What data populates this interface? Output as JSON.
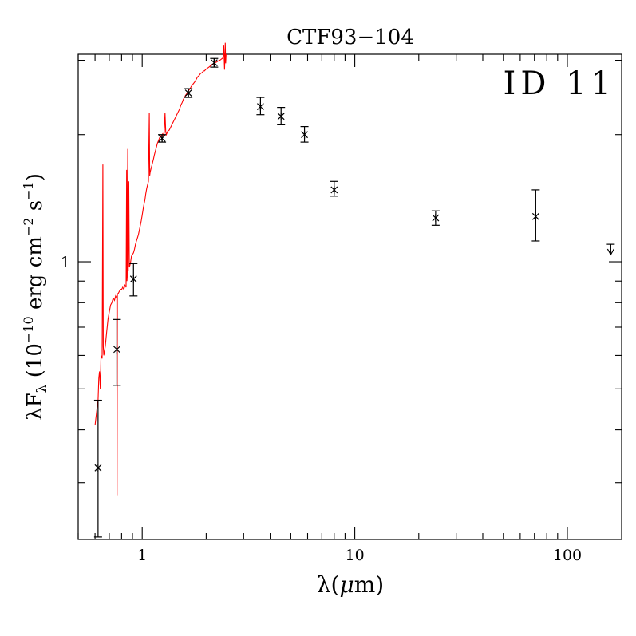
{
  "chart_data": {
    "type": "scatter",
    "title": "CTF93−104",
    "annotation": "ID 11",
    "xlabel_prefix": "λ(",
    "xlabel_mu": "μ",
    "xlabel_suffix": "m)",
    "ylabel": {
      "lambda": "λ",
      "F": "F",
      "sub": "λ",
      "open": " (10",
      "exp1": "−10",
      "mid": " erg cm",
      "exp2": "−2",
      "s": " s",
      "exp3": "−1",
      "close": ")"
    },
    "xscale": "log",
    "yscale": "log",
    "xlim": [
      0.5,
      180
    ],
    "ylim": [
      0.22,
      3.1
    ],
    "x_tick_labels": [
      {
        "value": 1,
        "label": "1"
      },
      {
        "value": 10,
        "label": "10"
      },
      {
        "value": 100,
        "label": "100"
      }
    ],
    "y_tick_labels": [
      {
        "value": 1,
        "label": "1"
      }
    ],
    "photometry": [
      {
        "x": 0.62,
        "y": 0.325,
        "lo": 0.223,
        "hi": 0.47
      },
      {
        "x": 0.76,
        "y": 0.62,
        "lo": 0.51,
        "hi": 0.73
      },
      {
        "x": 0.91,
        "y": 0.91,
        "lo": 0.83,
        "hi": 0.99
      },
      {
        "x": 1.24,
        "y": 1.96,
        "lo": 1.92,
        "hi": 2.0
      },
      {
        "x": 1.65,
        "y": 2.51,
        "lo": 2.45,
        "hi": 2.57
      },
      {
        "x": 2.18,
        "y": 2.96,
        "lo": 2.89,
        "hi": 3.03
      },
      {
        "x": 3.6,
        "y": 2.33,
        "lo": 2.23,
        "hi": 2.45
      },
      {
        "x": 4.5,
        "y": 2.21,
        "lo": 2.11,
        "hi": 2.32
      },
      {
        "x": 5.8,
        "y": 2.0,
        "lo": 1.92,
        "hi": 2.09
      },
      {
        "x": 8.0,
        "y": 1.48,
        "lo": 1.43,
        "hi": 1.55
      },
      {
        "x": 24.0,
        "y": 1.27,
        "lo": 1.22,
        "hi": 1.32
      },
      {
        "x": 71.0,
        "y": 1.28,
        "lo": 1.12,
        "hi": 1.48
      },
      {
        "x": 160.0,
        "y": 1.08,
        "lo": 1.04,
        "hi": 1.1,
        "upper_limit": true
      }
    ],
    "spectrum": {
      "color": "#ff0000",
      "points": [
        [
          0.6,
          0.41
        ],
        [
          0.61,
          0.44
        ],
        [
          0.62,
          0.47
        ],
        [
          0.625,
          0.53
        ],
        [
          0.63,
          0.55
        ],
        [
          0.635,
          0.5
        ],
        [
          0.64,
          0.6
        ],
        [
          0.648,
          0.59
        ],
        [
          0.653,
          1.7
        ],
        [
          0.656,
          0.63
        ],
        [
          0.66,
          0.6
        ],
        [
          0.67,
          0.63
        ],
        [
          0.68,
          0.68
        ],
        [
          0.69,
          0.73
        ],
        [
          0.7,
          0.76
        ],
        [
          0.71,
          0.79
        ],
        [
          0.72,
          0.8
        ],
        [
          0.73,
          0.82
        ],
        [
          0.74,
          0.81
        ],
        [
          0.75,
          0.83
        ],
        [
          0.76,
          0.82
        ],
        [
          0.762,
          0.28
        ],
        [
          0.764,
          0.84
        ],
        [
          0.77,
          0.84
        ],
        [
          0.78,
          0.85
        ],
        [
          0.79,
          0.86
        ],
        [
          0.8,
          0.86
        ],
        [
          0.81,
          0.87
        ],
        [
          0.82,
          0.86
        ],
        [
          0.83,
          0.88
        ],
        [
          0.84,
          0.87
        ],
        [
          0.845,
          1.65
        ],
        [
          0.848,
          0.9
        ],
        [
          0.85,
          0.92
        ],
        [
          0.855,
          1.85
        ],
        [
          0.86,
          0.95
        ],
        [
          0.865,
          1.55
        ],
        [
          0.87,
          0.97
        ],
        [
          0.88,
          0.99
        ],
        [
          0.89,
          1.03
        ],
        [
          0.9,
          1.04
        ],
        [
          0.91,
          1.05
        ],
        [
          0.92,
          1.07
        ],
        [
          0.93,
          1.1
        ],
        [
          0.94,
          1.12
        ],
        [
          0.95,
          1.14
        ],
        [
          0.96,
          1.16
        ],
        [
          0.97,
          1.19
        ],
        [
          0.98,
          1.22
        ],
        [
          0.99,
          1.25
        ],
        [
          1.0,
          1.29
        ],
        [
          1.01,
          1.33
        ],
        [
          1.02,
          1.37
        ],
        [
          1.03,
          1.4
        ],
        [
          1.04,
          1.45
        ],
        [
          1.05,
          1.49
        ],
        [
          1.06,
          1.52
        ],
        [
          1.07,
          1.55
        ],
        [
          1.08,
          2.25
        ],
        [
          1.085,
          1.6
        ],
        [
          1.09,
          1.63
        ],
        [
          1.1,
          1.66
        ],
        [
          1.11,
          1.69
        ],
        [
          1.12,
          1.72
        ],
        [
          1.13,
          1.75
        ],
        [
          1.14,
          1.79
        ],
        [
          1.15,
          1.82
        ],
        [
          1.16,
          1.85
        ],
        [
          1.17,
          1.88
        ],
        [
          1.18,
          1.91
        ],
        [
          1.19,
          1.93
        ],
        [
          1.2,
          1.95
        ],
        [
          1.21,
          1.97
        ],
        [
          1.22,
          1.99
        ],
        [
          1.23,
          1.98
        ],
        [
          1.24,
          2.0
        ],
        [
          1.25,
          2.01
        ],
        [
          1.26,
          1.98
        ],
        [
          1.27,
          2.02
        ],
        [
          1.28,
          2.25
        ],
        [
          1.29,
          2.03
        ],
        [
          1.3,
          2.0
        ],
        [
          1.32,
          2.04
        ],
        [
          1.34,
          2.05
        ],
        [
          1.5,
          2.3
        ],
        [
          1.52,
          2.35
        ],
        [
          1.54,
          2.38
        ],
        [
          1.56,
          2.42
        ],
        [
          1.58,
          2.45
        ],
        [
          1.6,
          2.48
        ],
        [
          1.62,
          2.5
        ],
        [
          1.64,
          2.53
        ],
        [
          1.66,
          2.55
        ],
        [
          1.68,
          2.57
        ],
        [
          1.7,
          2.6
        ],
        [
          1.72,
          2.62
        ],
        [
          1.74,
          2.64
        ],
        [
          1.76,
          2.66
        ],
        [
          1.78,
          2.68
        ],
        [
          1.8,
          2.71
        ],
        [
          1.82,
          2.74
        ],
        [
          1.84,
          2.75
        ],
        [
          1.86,
          2.77
        ],
        [
          1.88,
          2.79
        ],
        [
          1.9,
          2.8
        ],
        [
          1.92,
          2.81
        ],
        [
          1.94,
          2.83
        ],
        [
          1.96,
          2.83
        ],
        [
          2.0,
          2.86
        ],
        [
          2.04,
          2.88
        ],
        [
          2.08,
          2.9
        ],
        [
          2.12,
          2.93
        ],
        [
          2.16,
          2.94
        ],
        [
          2.2,
          2.96
        ],
        [
          2.24,
          2.97
        ],
        [
          2.28,
          2.99
        ],
        [
          2.32,
          3.0
        ],
        [
          2.36,
          3.02
        ],
        [
          2.4,
          3.04
        ],
        [
          2.42,
          3.25
        ],
        [
          2.44,
          2.85
        ],
        [
          2.46,
          3.3
        ],
        [
          2.47,
          2.95
        ],
        [
          2.48,
          3.1
        ]
      ]
    }
  }
}
